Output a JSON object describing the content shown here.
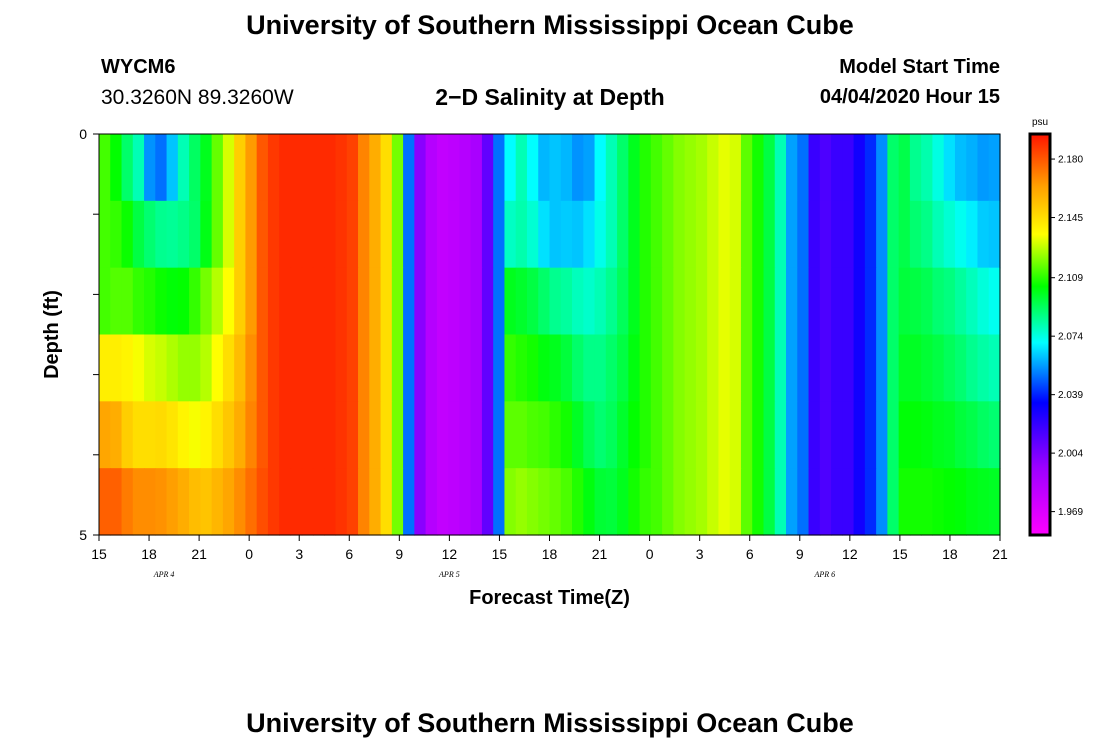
{
  "header": {
    "title": "University of Southern Mississippi Ocean Cube",
    "station_id": "WYCM6",
    "coordinates": "30.3260N 89.3260W",
    "chart_title": "2−D Salinity at Depth",
    "model_label": "Model Start Time",
    "model_value": "04/04/2020 Hour 15"
  },
  "footer": {
    "title": "University of Southern Mississippi Ocean Cube"
  },
  "chart_data": {
    "type": "heatmap",
    "title": "2−D Salinity at Depth",
    "xlabel": "Forecast Time(Z)",
    "ylabel": "Depth (ft)",
    "x_ticks": [
      "15",
      "18",
      "21",
      "0",
      "3",
      "6",
      "9",
      "12",
      "15",
      "18",
      "21",
      "0",
      "3",
      "6",
      "9",
      "12",
      "15",
      "18",
      "21"
    ],
    "date_labels": [
      {
        "label": "APR 4",
        "tick_index": 1.3
      },
      {
        "label": "APR 5",
        "tick_index": 7
      },
      {
        "label": "APR 6",
        "tick_index": 14.5
      }
    ],
    "y_ticks": [
      "0",
      "5"
    ],
    "ylim": [
      0,
      5
    ],
    "colorbar": {
      "unit": "psu",
      "range": [
        1.955,
        2.195
      ],
      "ticks": [
        "1.969",
        "2.004",
        "2.039",
        "2.074",
        "2.109",
        "2.145",
        "2.180"
      ]
    },
    "rows": [
      [
        2.112,
        2.104,
        2.09,
        2.08,
        2.055,
        2.05,
        2.062,
        2.08,
        2.091,
        2.1,
        2.116,
        2.13,
        2.15,
        2.165,
        2.18,
        2.187,
        2.19,
        2.19,
        2.19,
        2.19,
        2.19,
        2.188,
        2.185,
        2.17,
        2.16,
        2.145,
        2.118,
        2.05,
        2.0,
        1.985,
        1.98,
        1.982,
        1.985,
        1.99,
        2.01,
        2.05,
        2.07,
        2.08,
        2.07,
        2.06,
        2.062,
        2.06,
        2.055,
        2.057,
        2.07,
        2.08,
        2.09,
        2.1,
        2.108,
        2.112,
        2.116,
        2.12,
        2.122,
        2.124,
        2.128,
        2.132,
        2.13,
        2.115,
        2.106,
        2.095,
        2.08,
        2.057,
        2.05,
        2.02,
        2.015,
        2.02,
        2.02,
        2.03,
        2.04,
        2.054,
        2.09,
        2.094,
        2.085,
        2.081,
        2.074,
        2.066,
        2.061,
        2.059,
        2.056,
        2.057
      ],
      [
        2.112,
        2.11,
        2.105,
        2.095,
        2.089,
        2.085,
        2.084,
        2.086,
        2.09,
        2.101,
        2.116,
        2.13,
        2.15,
        2.165,
        2.18,
        2.187,
        2.19,
        2.19,
        2.19,
        2.19,
        2.19,
        2.188,
        2.185,
        2.17,
        2.16,
        2.145,
        2.118,
        2.05,
        2.0,
        1.985,
        1.98,
        1.982,
        1.985,
        1.99,
        2.01,
        2.05,
        2.078,
        2.081,
        2.076,
        2.066,
        2.062,
        2.063,
        2.062,
        2.066,
        2.073,
        2.08,
        2.09,
        2.1,
        2.108,
        2.112,
        2.116,
        2.12,
        2.122,
        2.124,
        2.128,
        2.132,
        2.13,
        2.115,
        2.106,
        2.095,
        2.08,
        2.057,
        2.05,
        2.02,
        2.015,
        2.02,
        2.02,
        2.03,
        2.04,
        2.054,
        2.09,
        2.094,
        2.089,
        2.086,
        2.08,
        2.076,
        2.072,
        2.068,
        2.063,
        2.062
      ],
      [
        2.112,
        2.114,
        2.114,
        2.11,
        2.108,
        2.105,
        2.103,
        2.104,
        2.11,
        2.118,
        2.126,
        2.135,
        2.15,
        2.165,
        2.18,
        2.187,
        2.19,
        2.19,
        2.19,
        2.19,
        2.19,
        2.188,
        2.185,
        2.17,
        2.16,
        2.145,
        2.118,
        2.05,
        2.0,
        1.985,
        1.98,
        1.982,
        1.985,
        1.99,
        2.01,
        2.05,
        2.1,
        2.098,
        2.095,
        2.09,
        2.085,
        2.083,
        2.079,
        2.077,
        2.08,
        2.085,
        2.092,
        2.1,
        2.108,
        2.112,
        2.116,
        2.12,
        2.122,
        2.124,
        2.128,
        2.132,
        2.13,
        2.115,
        2.106,
        2.095,
        2.08,
        2.057,
        2.05,
        2.02,
        2.015,
        2.02,
        2.02,
        2.03,
        2.04,
        2.054,
        2.09,
        2.096,
        2.095,
        2.093,
        2.089,
        2.087,
        2.083,
        2.079,
        2.075,
        2.072
      ],
      [
        2.14,
        2.14,
        2.138,
        2.134,
        2.13,
        2.128,
        2.125,
        2.122,
        2.122,
        2.126,
        2.135,
        2.145,
        2.155,
        2.168,
        2.18,
        2.187,
        2.19,
        2.19,
        2.19,
        2.19,
        2.19,
        2.188,
        2.185,
        2.17,
        2.16,
        2.145,
        2.118,
        2.05,
        2.0,
        1.985,
        1.98,
        1.982,
        1.985,
        1.99,
        2.01,
        2.05,
        2.11,
        2.108,
        2.106,
        2.102,
        2.1,
        2.096,
        2.09,
        2.086,
        2.086,
        2.09,
        2.095,
        2.102,
        2.108,
        2.112,
        2.116,
        2.12,
        2.122,
        2.124,
        2.128,
        2.132,
        2.13,
        2.115,
        2.106,
        2.095,
        2.08,
        2.057,
        2.05,
        2.02,
        2.015,
        2.02,
        2.02,
        2.03,
        2.04,
        2.054,
        2.09,
        2.099,
        2.099,
        2.097,
        2.095,
        2.092,
        2.089,
        2.085,
        2.082,
        2.08
      ],
      [
        2.162,
        2.16,
        2.15,
        2.145,
        2.145,
        2.146,
        2.143,
        2.138,
        2.134,
        2.138,
        2.145,
        2.152,
        2.16,
        2.17,
        2.18,
        2.187,
        2.19,
        2.19,
        2.19,
        2.19,
        2.19,
        2.188,
        2.185,
        2.17,
        2.16,
        2.145,
        2.118,
        2.05,
        2.0,
        1.985,
        1.98,
        1.982,
        1.985,
        1.99,
        2.01,
        2.05,
        2.115,
        2.115,
        2.113,
        2.112,
        2.109,
        2.106,
        2.099,
        2.093,
        2.089,
        2.092,
        2.098,
        2.104,
        2.108,
        2.112,
        2.116,
        2.12,
        2.122,
        2.124,
        2.128,
        2.132,
        2.13,
        2.115,
        2.106,
        2.095,
        2.08,
        2.057,
        2.05,
        2.02,
        2.015,
        2.02,
        2.02,
        2.03,
        2.04,
        2.054,
        2.09,
        2.103,
        2.103,
        2.102,
        2.1,
        2.099,
        2.096,
        2.094,
        2.091,
        2.089
      ],
      [
        2.178,
        2.178,
        2.172,
        2.168,
        2.168,
        2.167,
        2.164,
        2.16,
        2.155,
        2.153,
        2.157,
        2.162,
        2.168,
        2.175,
        2.182,
        2.187,
        2.19,
        2.19,
        2.19,
        2.19,
        2.19,
        2.188,
        2.185,
        2.17,
        2.16,
        2.145,
        2.118,
        2.05,
        2.0,
        1.985,
        1.98,
        1.982,
        1.985,
        1.99,
        2.01,
        2.05,
        2.12,
        2.122,
        2.12,
        2.118,
        2.116,
        2.113,
        2.108,
        2.102,
        2.097,
        2.096,
        2.1,
        2.106,
        2.11,
        2.112,
        2.116,
        2.12,
        2.122,
        2.124,
        2.128,
        2.132,
        2.13,
        2.115,
        2.106,
        2.095,
        2.08,
        2.057,
        2.05,
        2.02,
        2.015,
        2.02,
        2.02,
        2.03,
        2.04,
        2.054,
        2.09,
        2.106,
        2.106,
        2.106,
        2.105,
        2.104,
        2.103,
        2.101,
        2.1,
        2.099
      ]
    ]
  }
}
